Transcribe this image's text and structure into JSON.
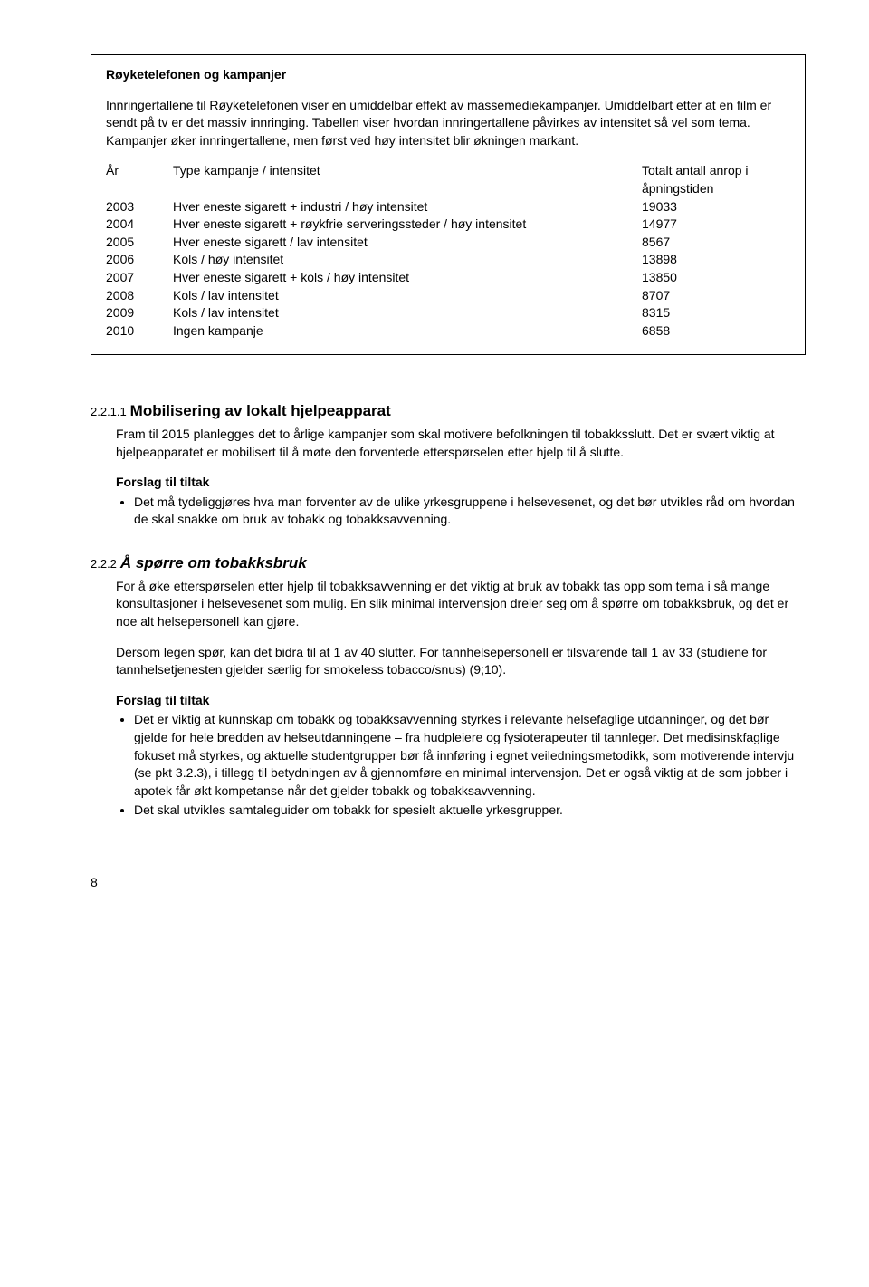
{
  "box": {
    "title": "Røyketelefonen og kampanjer",
    "intro": "Innringertallene til Røyketelefonen viser en umiddelbar effekt av massemediekampanjer. Umiddelbart etter at en film er sendt på tv er det massiv innringing. Tabellen viser hvordan innringertallene påvirkes av intensitet så vel som tema. Kampanjer øker innringertallene, men først ved høy intensitet blir økningen markant.",
    "header": {
      "year": "År",
      "type": "Type kampanje / intensitet",
      "total": "Totalt antall anrop i åpningstiden"
    },
    "rows": [
      {
        "year": "2003",
        "type": "Hver eneste sigarett + industri / høy intensitet",
        "total": "19033"
      },
      {
        "year": "2004",
        "type": "Hver eneste sigarett + røykfrie serveringssteder / høy intensitet",
        "total": "14977"
      },
      {
        "year": "2005",
        "type": "Hver eneste sigarett / lav intensitet",
        "total": "8567"
      },
      {
        "year": "2006",
        "type": "Kols / høy intensitet",
        "total": "13898"
      },
      {
        "year": "2007",
        "type": "Hver eneste sigarett + kols / høy intensitet",
        "total": "13850"
      },
      {
        "year": "2008",
        "type": "Kols / lav intensitet",
        "total": "8707"
      },
      {
        "year": "2009",
        "type": "Kols / lav intensitet",
        "total": "8315"
      },
      {
        "year": "2010",
        "type": "Ingen kampanje",
        "total": "6858"
      }
    ]
  },
  "s1": {
    "num": "2.2.1.1",
    "title": "Mobilisering av lokalt hjelpeapparat",
    "para": "Fram til 2015 planlegges det to årlige kampanjer som skal motivere befolkningen til tobakksslutt. Det er svært viktig at hjelpeapparatet er mobilisert til å møte den forventede etterspørselen etter hjelp til å slutte.",
    "forslag": "Forslag til tiltak",
    "bullets": [
      "Det må tydeliggjøres hva man forventer av de ulike yrkesgruppene i helsevesenet, og det bør utvikles råd om hvordan de skal snakke om bruk av tobakk og tobakksavvenning."
    ]
  },
  "s2": {
    "num": "2.2.2",
    "title": "Å spørre om tobakksbruk",
    "para1": "For å øke etterspørselen etter hjelp til tobakksavvenning er det viktig at bruk av tobakk tas opp som tema i så mange konsultasjoner i helsevesenet som mulig. En slik minimal intervensjon dreier seg om å spørre om tobakksbruk, og det er noe alt helsepersonell kan gjøre.",
    "para2": "Dersom legen spør, kan det bidra til at 1 av 40 slutter. For tannhelsepersonell er tilsvarende tall 1 av 33 (studiene for tannhelsetjenesten gjelder særlig for smokeless tobacco/snus) (9;10).",
    "forslag": "Forslag til tiltak",
    "bullets": [
      "Det er viktig at kunnskap om tobakk og tobakksavvenning styrkes i relevante helsefaglige utdanninger, og det bør gjelde for hele bredden av helseutdanningene – fra hudpleiere og fysioterapeuter til tannleger. Det medisinskfaglige fokuset må styrkes, og aktuelle studentgrupper bør få innføring i egnet veiledningsmetodikk, som motiverende intervju (se pkt 3.2.3), i tillegg til betydningen av å gjennomføre en minimal intervensjon. Det er også viktig at de som jobber i apotek får økt kompetanse når det gjelder tobakk og tobakksavvenning.",
      "Det skal utvikles samtaleguider om tobakk for spesielt aktuelle yrkesgrupper."
    ]
  },
  "pageNum": "8"
}
